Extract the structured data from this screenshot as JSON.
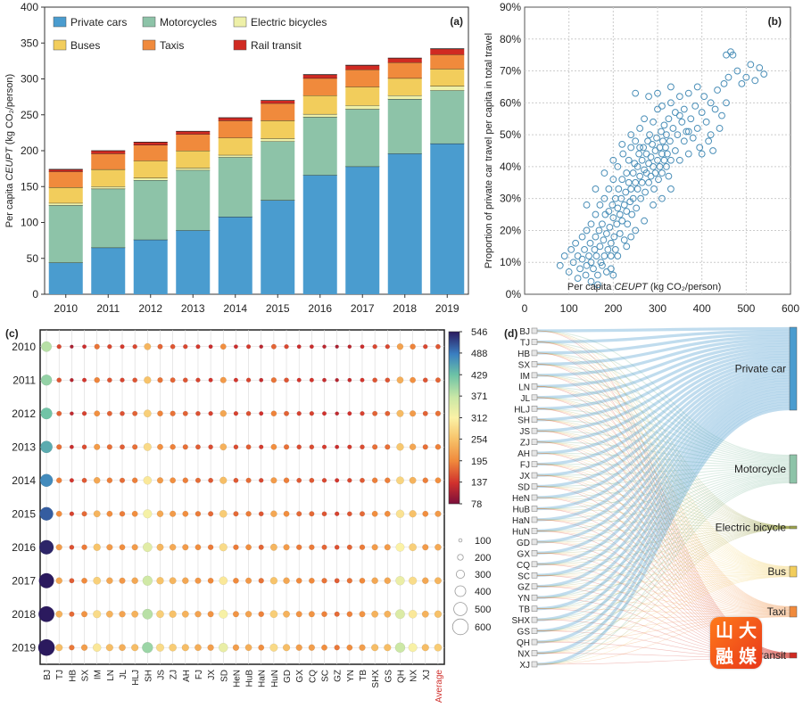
{
  "chart_data": [
    {
      "panel": "(a)",
      "type": "bar",
      "stacked": true,
      "ylabel_prefix": "Per capita ",
      "ylabel_italic": "CEUPT",
      "ylabel_suffix": " (kg CO₂/person)",
      "ylim": [
        0,
        400
      ],
      "yticks": [
        0,
        50,
        100,
        150,
        200,
        250,
        300,
        350,
        400
      ],
      "categories": [
        "2010",
        "2011",
        "2012",
        "2013",
        "2014",
        "2015",
        "2016",
        "2017",
        "2018",
        "2019"
      ],
      "series": [
        {
          "name": "Private cars",
          "color": "#4a9ccf",
          "values": [
            44,
            65,
            76,
            89,
            108,
            131,
            166,
            178,
            196,
            210
          ]
        },
        {
          "name": "Motorcycles",
          "color": "#8dc3a8",
          "values": [
            80,
            82,
            83,
            84,
            83,
            82,
            81,
            80,
            76,
            74
          ]
        },
        {
          "name": "Electric bicycles",
          "color": "#eef0a8",
          "values": [
            3,
            3,
            3,
            3,
            3,
            4,
            4,
            5,
            5,
            6
          ]
        },
        {
          "name": "Buses",
          "color": "#f2cd5c",
          "values": [
            22,
            24,
            24,
            24,
            24,
            25,
            26,
            26,
            24,
            24
          ]
        },
        {
          "name": "Taxis",
          "color": "#f08a3c",
          "values": [
            22,
            22,
            22,
            23,
            24,
            24,
            24,
            24,
            22,
            20
          ]
        },
        {
          "name": "Rail transit",
          "color": "#d02a22",
          "values": [
            3,
            4,
            4,
            4,
            4,
            4,
            5,
            6,
            6,
            8
          ]
        }
      ]
    },
    {
      "panel": "(b)",
      "type": "scatter",
      "xlabel_prefix": "Per capita ",
      "xlabel_italic": "CEUPT",
      "xlabel_suffix": " (kg CO₂/person)",
      "ylabel": "Proportion of private car travel per capita in total travel",
      "xlim": [
        0,
        600
      ],
      "ylim": [
        0,
        90
      ],
      "xticks": [
        0,
        100,
        200,
        300,
        400,
        500,
        600
      ],
      "yticks": [
        0,
        10,
        20,
        30,
        40,
        50,
        60,
        70,
        80,
        90
      ],
      "ytick_suffix": "%",
      "points": [
        [
          80,
          9
        ],
        [
          90,
          12
        ],
        [
          100,
          7
        ],
        [
          105,
          14
        ],
        [
          110,
          10
        ],
        [
          115,
          16
        ],
        [
          120,
          5
        ],
        [
          120,
          12
        ],
        [
          125,
          8
        ],
        [
          130,
          18
        ],
        [
          130,
          11
        ],
        [
          135,
          14
        ],
        [
          138,
          6
        ],
        [
          140,
          20
        ],
        [
          140,
          9
        ],
        [
          145,
          12
        ],
        [
          148,
          16
        ],
        [
          150,
          22
        ],
        [
          150,
          10
        ],
        [
          155,
          8
        ],
        [
          158,
          14
        ],
        [
          160,
          18
        ],
        [
          160,
          25
        ],
        [
          162,
          12
        ],
        [
          165,
          6
        ],
        [
          168,
          20
        ],
        [
          170,
          15
        ],
        [
          170,
          28
        ],
        [
          172,
          10
        ],
        [
          175,
          22
        ],
        [
          178,
          17
        ],
        [
          180,
          12
        ],
        [
          180,
          30
        ],
        [
          182,
          25
        ],
        [
          185,
          19
        ],
        [
          188,
          14
        ],
        [
          190,
          26
        ],
        [
          190,
          33
        ],
        [
          192,
          21
        ],
        [
          195,
          16
        ],
        [
          195,
          12
        ],
        [
          198,
          28
        ],
        [
          200,
          24
        ],
        [
          200,
          36
        ],
        [
          202,
          18
        ],
        [
          205,
          30
        ],
        [
          205,
          14
        ],
        [
          208,
          22
        ],
        [
          210,
          27
        ],
        [
          210,
          40
        ],
        [
          212,
          33
        ],
        [
          215,
          19
        ],
        [
          215,
          25
        ],
        [
          218,
          30
        ],
        [
          220,
          36
        ],
        [
          220,
          23
        ],
        [
          222,
          44
        ],
        [
          225,
          28
        ],
        [
          225,
          17
        ],
        [
          228,
          32
        ],
        [
          230,
          38
        ],
        [
          230,
          26
        ],
        [
          232,
          22
        ],
        [
          235,
          35
        ],
        [
          235,
          42
        ],
        [
          238,
          29
        ],
        [
          240,
          33
        ],
        [
          240,
          46
        ],
        [
          242,
          25
        ],
        [
          245,
          38
        ],
        [
          245,
          30
        ],
        [
          248,
          41
        ],
        [
          250,
          35
        ],
        [
          250,
          48
        ],
        [
          252,
          27
        ],
        [
          255,
          40
        ],
        [
          255,
          33
        ],
        [
          258,
          44
        ],
        [
          260,
          37
        ],
        [
          260,
          52
        ],
        [
          262,
          30
        ],
        [
          265,
          42
        ],
        [
          265,
          35
        ],
        [
          268,
          46
        ],
        [
          270,
          39
        ],
        [
          270,
          55
        ],
        [
          272,
          32
        ],
        [
          275,
          44
        ],
        [
          275,
          38
        ],
        [
          278,
          48
        ],
        [
          280,
          41
        ],
        [
          280,
          35
        ],
        [
          282,
          50
        ],
        [
          285,
          43
        ],
        [
          285,
          37
        ],
        [
          288,
          47
        ],
        [
          290,
          40
        ],
        [
          290,
          54
        ],
        [
          292,
          33
        ],
        [
          295,
          45
        ],
        [
          295,
          38
        ],
        [
          298,
          49
        ],
        [
          300,
          42
        ],
        [
          300,
          58
        ],
        [
          302,
          36
        ],
        [
          305,
          46
        ],
        [
          305,
          40
        ],
        [
          308,
          51
        ],
        [
          310,
          44
        ],
        [
          310,
          38
        ],
        [
          312,
          48
        ],
        [
          315,
          42
        ],
        [
          315,
          53
        ],
        [
          318,
          46
        ],
        [
          320,
          40
        ],
        [
          320,
          50
        ],
        [
          322,
          44
        ],
        [
          325,
          55
        ],
        [
          325,
          37
        ],
        [
          328,
          48
        ],
        [
          330,
          42
        ],
        [
          330,
          60
        ],
        [
          335,
          52
        ],
        [
          340,
          45
        ],
        [
          340,
          57
        ],
        [
          345,
          50
        ],
        [
          350,
          42
        ],
        [
          350,
          62
        ],
        [
          355,
          54
        ],
        [
          360,
          48
        ],
        [
          360,
          58
        ],
        [
          365,
          51
        ],
        [
          370,
          44
        ],
        [
          370,
          63
        ],
        [
          375,
          55
        ],
        [
          380,
          49
        ],
        [
          385,
          59
        ],
        [
          390,
          52
        ],
        [
          390,
          65
        ],
        [
          395,
          46
        ],
        [
          400,
          57
        ],
        [
          405,
          62
        ],
        [
          410,
          54
        ],
        [
          415,
          48
        ],
        [
          420,
          60
        ],
        [
          425,
          45
        ],
        [
          430,
          58
        ],
        [
          435,
          64
        ],
        [
          440,
          52
        ],
        [
          445,
          56
        ],
        [
          450,
          66
        ],
        [
          455,
          60
        ],
        [
          460,
          68
        ],
        [
          470,
          75
        ],
        [
          480,
          70
        ],
        [
          490,
          66
        ],
        [
          500,
          68
        ],
        [
          510,
          72
        ],
        [
          520,
          67
        ],
        [
          530,
          71
        ],
        [
          540,
          69
        ],
        [
          250,
          63
        ],
        [
          300,
          63
        ],
        [
          330,
          65
        ],
        [
          280,
          62
        ],
        [
          350,
          56
        ],
        [
          220,
          47
        ],
        [
          180,
          38
        ],
        [
          160,
          33
        ],
        [
          140,
          28
        ],
        [
          200,
          42
        ],
        [
          240,
          50
        ],
        [
          260,
          46
        ],
        [
          310,
          59
        ],
        [
          370,
          51
        ],
        [
          400,
          44
        ],
        [
          420,
          50
        ],
        [
          150,
          4
        ],
        [
          165,
          3
        ],
        [
          175,
          9
        ],
        [
          185,
          7
        ],
        [
          195,
          8
        ],
        [
          210,
          12
        ],
        [
          230,
          15
        ],
        [
          250,
          20
        ],
        [
          270,
          23
        ],
        [
          290,
          28
        ],
        [
          310,
          30
        ],
        [
          330,
          33
        ],
        [
          200,
          6
        ],
        [
          240,
          18
        ],
        [
          455,
          75
        ],
        [
          465,
          76
        ]
      ]
    },
    {
      "panel": "(c)",
      "type": "bubble",
      "rows": [
        "2010",
        "2011",
        "2012",
        "2013",
        "2014",
        "2015",
        "2016",
        "2017",
        "2018",
        "2019"
      ],
      "columns": [
        "BJ",
        "TJ",
        "HB",
        "SX",
        "IM",
        "LN",
        "JL",
        "HLJ",
        "SH",
        "JS",
        "ZJ",
        "AH",
        "FJ",
        "JX",
        "SD",
        "HeN",
        "HuB",
        "HaN",
        "HuN",
        "GD",
        "GX",
        "CQ",
        "SC",
        "GZ",
        "YN",
        "TB",
        "SHX",
        "GS",
        "QH",
        "NX",
        "XJ",
        "Average"
      ],
      "colorbar_ticks": [
        546,
        488,
        429,
        371,
        312,
        254,
        195,
        137,
        78
      ],
      "color_range": [
        78,
        546
      ],
      "size_legend": [
        100,
        200,
        300,
        400,
        500,
        600
      ],
      "base_values": [
        380,
        150,
        110,
        130,
        180,
        150,
        140,
        150,
        240,
        170,
        160,
        150,
        140,
        130,
        200,
        130,
        140,
        120,
        170,
        150,
        130,
        130,
        120,
        110,
        120,
        130,
        150,
        150,
        220,
        190,
        150,
        160
      ],
      "growth": [
        1.0,
        1.06,
        1.12,
        1.18,
        1.25,
        1.33,
        1.42,
        1.5,
        1.58,
        1.66
      ]
    },
    {
      "panel": "(d)",
      "type": "sankey",
      "sources": [
        "BJ",
        "TJ",
        "HB",
        "SX",
        "IM",
        "LN",
        "JL",
        "HLJ",
        "SH",
        "JS",
        "ZJ",
        "AH",
        "FJ",
        "JX",
        "SD",
        "HeN",
        "HuB",
        "HaN",
        "HuN",
        "GD",
        "GX",
        "CQ",
        "SC",
        "GZ",
        "YN",
        "TB",
        "SHX",
        "GS",
        "QH",
        "NX",
        "XJ"
      ],
      "targets": [
        {
          "name": "Private car",
          "color": "#4a9ccf",
          "share": 0.6
        },
        {
          "name": "Motorcycle",
          "color": "#8dc3a8",
          "share": 0.2
        },
        {
          "name": "Electric bicycle",
          "color": "#9ca34a",
          "share": 0.012
        },
        {
          "name": "Bus",
          "color": "#f2cd5c",
          "share": 0.07
        },
        {
          "name": "Taxi",
          "color": "#f08a3c",
          "share": 0.06
        },
        {
          "name": "Rail transit",
          "color": "#d02a22",
          "share": 0.03
        }
      ]
    }
  ],
  "watermark": [
    "山",
    "大",
    "融",
    "媒"
  ]
}
